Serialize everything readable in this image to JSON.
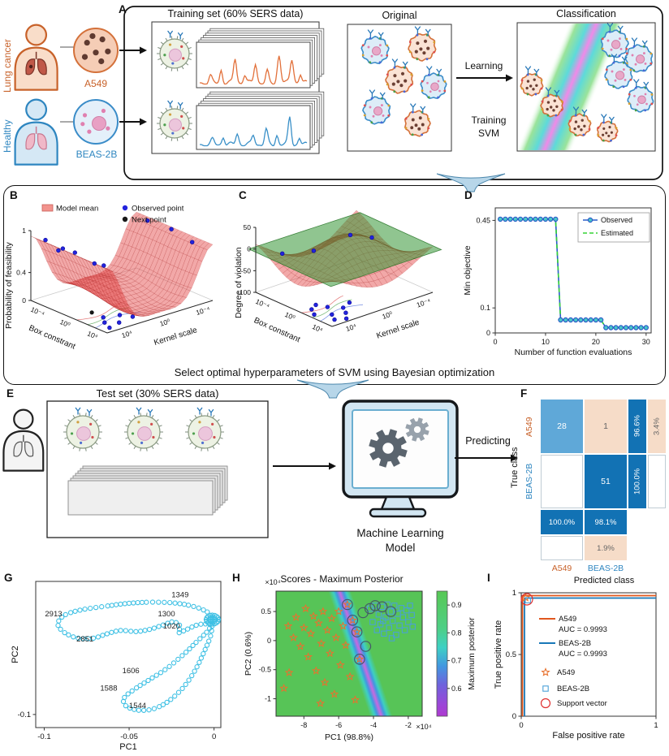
{
  "colors": {
    "accent_orange": "#c8622a",
    "accent_blue": "#2e86c0",
    "cyan": "#3ec0e4",
    "confusion_dark": "#1272b4",
    "confusion_mid": "#5fa8d8",
    "confusion_peach": "#f6dcc8",
    "green_bg": "#57c457"
  },
  "bcd_caption": "Select optimal hyperparameters of SVM using Bayesian optimization",
  "panels": {
    "A": {
      "label": "A",
      "lung_cancer": "Lung cancer",
      "healthy": "Healthy",
      "a549": "A549",
      "beas2b": "BEAS-2B",
      "training_title": "Training set (60% SERS data)",
      "original_title": "Original",
      "classification_title": "Classification",
      "learning": "Learning",
      "training_svm": "Training SVM"
    },
    "B": {
      "label": "B"
    },
    "C": {
      "label": "C"
    },
    "D": {
      "label": "D"
    },
    "E": {
      "label": "E",
      "title": "Test set (30% SERS data)",
      "model_label": "Machine Learning Model",
      "predicting": "Predicting"
    },
    "F": {
      "label": "F"
    },
    "G": {
      "label": "G"
    },
    "H": {
      "label": "H"
    },
    "I": {
      "label": "I"
    }
  },
  "chart_data": [
    {
      "id": "B",
      "type": "surface3d",
      "zlabel": "Probability of feasibility",
      "xlabel": "Box constrant",
      "ylabel": "Kernel scale",
      "zticks": [
        {
          "label": "1",
          "f": 1
        },
        {
          "label": "0.4",
          "f": 0.4
        },
        {
          "label": "0",
          "f": 0
        }
      ],
      "xticks": [
        "10⁻⁴",
        "10⁰",
        "10⁴"
      ],
      "yticks": [
        "10⁴",
        "10⁰",
        "10⁻⁴"
      ],
      "legend": [
        {
          "label": "Model mean",
          "type": "patch",
          "color": "#f2938d"
        },
        {
          "label": "Observed point",
          "type": "dot",
          "color": "#2323dd"
        },
        {
          "label": "Next point",
          "type": "dot",
          "color": "#181818"
        }
      ],
      "surface_rgb": "226,62,62",
      "dots_surface": [
        [
          0.15,
          0.03
        ],
        [
          0.35,
          0.05
        ],
        [
          0.55,
          0.02
        ],
        [
          0.75,
          0.06
        ],
        [
          0.9,
          0.04
        ],
        [
          0.25,
          0.08
        ],
        [
          0.2,
          0.96
        ],
        [
          0.5,
          0.97
        ],
        [
          0.8,
          0.95
        ]
      ],
      "dots_floor": [
        [
          0.8,
          0.12
        ],
        [
          0.88,
          0.2
        ],
        [
          0.75,
          0.3
        ],
        [
          0.92,
          0.08
        ],
        [
          0.7,
          0.18
        ],
        [
          0.85,
          0.35
        ]
      ],
      "next_point": [
        0.55,
        0.18
      ]
    },
    {
      "id": "C",
      "type": "surface3d",
      "zlabel": "Degree of violation",
      "xlabel": "Box constrant",
      "ylabel": "Kernel scale",
      "zticks": [
        {
          "label": "50",
          "f": 1
        },
        {
          "label": "0",
          "f": 0.667
        },
        {
          "label": "-50",
          "f": 0.333
        },
        {
          "label": "-100",
          "f": 0
        }
      ],
      "xticks": [
        "10⁻⁴",
        "10⁰",
        "10⁴"
      ],
      "yticks": [
        "10⁴",
        "10⁰",
        "10⁻⁴"
      ],
      "plane_f": 0.667,
      "surface_rgb": "226,62,62",
      "dots_floor": [
        [
          0.6,
          0.1
        ],
        [
          0.7,
          0.05
        ],
        [
          0.8,
          0.15
        ],
        [
          0.9,
          0.1
        ],
        [
          0.65,
          0.22
        ],
        [
          0.75,
          0.3
        ],
        [
          0.85,
          0.25
        ],
        [
          0.55,
          0.18
        ],
        [
          0.95,
          0.18
        ],
        [
          0.7,
          0.4
        ]
      ],
      "dots_surface": [
        [
          0.15,
          0.15
        ],
        [
          0.25,
          0.75
        ],
        [
          0.1,
          0.5
        ],
        [
          0.4,
          0.85
        ]
      ]
    },
    {
      "id": "D",
      "type": "line",
      "xlabel": "Number of function evaluations",
      "ylabel": "Min objective",
      "xlim": [
        0,
        31
      ],
      "ylim": [
        0,
        0.5
      ],
      "xticks": [
        0,
        10,
        20,
        30
      ],
      "yticks": [
        {
          "label": "0.45",
          "v": 0.45
        },
        {
          "label": "0.1",
          "v": 0.1
        },
        {
          "label": "0",
          "v": 0
        }
      ],
      "legend": [
        {
          "label": "Observed",
          "color": "#2b5bc8",
          "dash": false
        },
        {
          "label": "Estimated",
          "color": "#35d435",
          "dash": true
        }
      ],
      "marker_fill": "#49c8c8",
      "x": [
        1,
        2,
        3,
        4,
        5,
        6,
        7,
        8,
        9,
        10,
        11,
        12,
        13,
        14,
        15,
        16,
        17,
        18,
        19,
        20,
        21,
        22,
        23,
        24,
        25,
        26,
        27,
        28,
        29,
        30
      ],
      "y": [
        0.455,
        0.455,
        0.455,
        0.455,
        0.455,
        0.455,
        0.455,
        0.455,
        0.455,
        0.455,
        0.455,
        0.455,
        0.052,
        0.052,
        0.052,
        0.052,
        0.052,
        0.052,
        0.052,
        0.052,
        0.052,
        0.021,
        0.021,
        0.021,
        0.021,
        0.021,
        0.021,
        0.021,
        0.021,
        0.021
      ]
    },
    {
      "id": "F",
      "type": "heatmap",
      "ylabel": "True class",
      "xlabel": "Predicted class",
      "rows": [
        "A549",
        "BEAS-2B"
      ],
      "cols": [
        "A549",
        "BEAS-2B"
      ],
      "matrix": [
        [
          "28",
          "1"
        ],
        [
          "",
          "51"
        ]
      ],
      "row_summary": [
        [
          "96.6%",
          "3.4%"
        ],
        [
          "100.0%",
          ""
        ]
      ],
      "col_summary": [
        [
          "100.0%",
          "98.1%"
        ],
        [
          "",
          "1.9%"
        ]
      ],
      "cell_colors": {
        "c00": "#5fa8d8",
        "c01": "#f6dcc8",
        "c10": "#ffffff",
        "c11": "#1272b4",
        "dark": "#1272b4",
        "peach": "#f6dcc8",
        "white": "#ffffff"
      }
    },
    {
      "id": "G",
      "type": "scatter",
      "xlabel": "PC1",
      "ylabel": "PC2",
      "xlim": [
        -0.105,
        0.004
      ],
      "ylim": [
        -0.112,
        0.022
      ],
      "xticks": [
        {
          "label": "-0.1",
          "v": -0.1
        },
        {
          "label": "-0.05",
          "v": -0.05
        },
        {
          "label": "0",
          "v": 0
        }
      ],
      "yticks": [
        {
          "label": "-0.1",
          "v": -0.1
        }
      ],
      "marker_color": "#3ec0e4",
      "loop": [
        [
          -0.001,
          -0.013
        ],
        [
          -0.004,
          -0.006
        ],
        [
          -0.012,
          -0.001
        ],
        [
          -0.022,
          0.002
        ],
        [
          -0.035,
          0.003
        ],
        [
          -0.05,
          0.002
        ],
        [
          -0.065,
          -0.001
        ],
        [
          -0.078,
          -0.004
        ],
        [
          -0.088,
          -0.009
        ],
        [
          -0.092,
          -0.017
        ],
        [
          -0.088,
          -0.025
        ],
        [
          -0.08,
          -0.03
        ],
        [
          -0.071,
          -0.03
        ],
        [
          -0.063,
          -0.026
        ],
        [
          -0.055,
          -0.023
        ],
        [
          -0.046,
          -0.024
        ],
        [
          -0.038,
          -0.022
        ],
        [
          -0.03,
          -0.018
        ],
        [
          -0.024,
          -0.015
        ],
        [
          -0.02,
          -0.019
        ],
        [
          -0.021,
          -0.025
        ],
        [
          -0.016,
          -0.022
        ],
        [
          -0.01,
          -0.018
        ],
        [
          -0.005,
          -0.017
        ],
        [
          -0.002,
          -0.018
        ],
        [
          -0.004,
          -0.024
        ],
        [
          -0.01,
          -0.033
        ],
        [
          -0.018,
          -0.045
        ],
        [
          -0.028,
          -0.058
        ],
        [
          -0.038,
          -0.068
        ],
        [
          -0.047,
          -0.077
        ],
        [
          -0.053,
          -0.085
        ],
        [
          -0.052,
          -0.092
        ],
        [
          -0.045,
          -0.096
        ],
        [
          -0.036,
          -0.095
        ],
        [
          -0.027,
          -0.088
        ],
        [
          -0.018,
          -0.075
        ],
        [
          -0.011,
          -0.059
        ],
        [
          -0.006,
          -0.043
        ],
        [
          -0.002,
          -0.028
        ],
        [
          -0.001,
          -0.016
        ]
      ],
      "annotations": [
        {
          "text": "2913",
          "x": -0.0945,
          "y": -0.01
        },
        {
          "text": "1349",
          "x": -0.02,
          "y": 0.0075
        },
        {
          "text": "1300",
          "x": -0.028,
          "y": -0.01
        },
        {
          "text": "1020",
          "x": -0.025,
          "y": -0.021
        },
        {
          "text": "2851",
          "x": -0.076,
          "y": -0.033
        },
        {
          "text": "1606",
          "x": -0.049,
          "y": -0.062
        },
        {
          "text": "1588",
          "x": -0.062,
          "y": -0.078
        },
        {
          "text": "1544",
          "x": -0.045,
          "y": -0.094
        }
      ]
    },
    {
      "id": "H",
      "type": "scatter",
      "title": "Scores - Maximum Posterior",
      "xlabel": "PC1 (98.8%)",
      "ylabel": "PC2 (0.6%)",
      "x_exp": "×10⁴",
      "y_exp": "×10⁴",
      "xlim": [
        -9.6,
        -1.2
      ],
      "ylim": [
        -1.3,
        0.85
      ],
      "xticks": [
        -8,
        -6,
        -4,
        -2
      ],
      "yticks": [
        {
          "label": "0.5",
          "v": 0.5
        },
        {
          "label": "0",
          "v": 0
        },
        {
          "label": "-0.5",
          "v": -0.5
        },
        {
          "label": "-1",
          "v": -1
        }
      ],
      "band": {
        "x_top": -5.95,
        "x_bottom": -3.55
      },
      "colorbar": {
        "label": "Maximum posterior",
        "range": [
          0.5,
          0.95
        ],
        "ticks": [
          0.9,
          0.8,
          0.7,
          0.6
        ]
      },
      "series": [
        {
          "name": "A549",
          "marker": "star",
          "color": "#e8722e"
        },
        {
          "name": "BEAS-2B",
          "marker": "square",
          "color": "#4aa0d8"
        }
      ],
      "stars": [
        [
          -8.9,
          0.25
        ],
        [
          -8.6,
          0.05
        ],
        [
          -8.45,
          0.4
        ],
        [
          -8.2,
          -0.1
        ],
        [
          -8.0,
          0.22
        ],
        [
          -7.9,
          0.55
        ],
        [
          -7.75,
          -0.28
        ],
        [
          -7.6,
          0.12
        ],
        [
          -7.45,
          0.42
        ],
        [
          -7.3,
          -0.52
        ],
        [
          -7.15,
          0.3
        ],
        [
          -7.0,
          -0.05
        ],
        [
          -6.9,
          0.5
        ],
        [
          -6.8,
          -0.72
        ],
        [
          -6.65,
          0.18
        ],
        [
          -6.5,
          -0.22
        ],
        [
          -6.4,
          0.38
        ],
        [
          -6.25,
          -0.92
        ],
        [
          -6.15,
          0.05
        ],
        [
          -6.0,
          0.5
        ],
        [
          -5.9,
          -0.42
        ],
        [
          -5.75,
          0.25
        ],
        [
          -5.6,
          -0.08
        ],
        [
          -5.5,
          0.62
        ],
        [
          -5.35,
          -0.62
        ],
        [
          -5.2,
          0.35
        ],
        [
          -5.05,
          -1.02
        ],
        [
          -4.95,
          0.15
        ],
        [
          -4.8,
          -0.32
        ],
        [
          -8.85,
          -0.55
        ],
        [
          -9.15,
          -0.82
        ],
        [
          -7.05,
          -1.08
        ]
      ],
      "squares": [
        [
          -4.2,
          0.55
        ],
        [
          -4.05,
          0.32
        ],
        [
          -3.9,
          0.6
        ],
        [
          -3.8,
          0.18
        ],
        [
          -3.7,
          0.45
        ],
        [
          -3.6,
          0.28
        ],
        [
          -3.5,
          0.58
        ],
        [
          -3.4,
          0.12
        ],
        [
          -3.3,
          0.4
        ],
        [
          -3.2,
          0.62
        ],
        [
          -3.1,
          0.22
        ],
        [
          -3.0,
          0.5
        ],
        [
          -2.9,
          0.34
        ],
        [
          -2.8,
          0.6
        ],
        [
          -2.7,
          0.1
        ],
        [
          -2.6,
          0.46
        ],
        [
          -2.5,
          0.26
        ],
        [
          -2.4,
          0.56
        ],
        [
          -2.3,
          0.4
        ],
        [
          -2.2,
          0.18
        ],
        [
          -2.1,
          0.52
        ],
        [
          -2.0,
          0.32
        ],
        [
          -1.9,
          0.6
        ],
        [
          -1.8,
          0.44
        ],
        [
          -1.75,
          0.24
        ],
        [
          -2.95,
          0.04
        ],
        [
          -3.45,
          0.34
        ]
      ],
      "support": [
        [
          -5.5,
          0.62
        ],
        [
          -5.2,
          0.35
        ],
        [
          -4.95,
          0.15
        ],
        [
          -4.8,
          -0.32
        ],
        [
          -4.6,
          0.48
        ],
        [
          -4.45,
          -0.1
        ],
        [
          -4.2,
          0.55
        ],
        [
          -3.9,
          0.6
        ],
        [
          -3.5,
          0.58
        ],
        [
          -3.0,
          0.5
        ]
      ]
    },
    {
      "id": "I",
      "type": "line",
      "xlabel": "False positive rate",
      "ylabel": "True positive rate",
      "xticks": [
        {
          "label": "0",
          "v": 0
        },
        {
          "label": "1",
          "v": 1
        }
      ],
      "yticks": [
        {
          "label": "0",
          "v": 0
        },
        {
          "label": "0.5",
          "v": 0.5
        },
        {
          "label": "1",
          "v": 1
        }
      ],
      "series": [
        {
          "name": "A549",
          "auc": "AUC = 0.9993",
          "color": "#e0571e",
          "points": [
            [
              0,
              0
            ],
            [
              0,
              1
            ],
            [
              1,
              1
            ]
          ]
        },
        {
          "name": "BEAS-2B",
          "auc": "AUC = 0.9993",
          "color": "#1878b8",
          "points": [
            [
              0,
              0
            ],
            [
              0,
              1
            ],
            [
              1,
              1
            ]
          ]
        }
      ],
      "marker_legend": [
        {
          "label": "A549",
          "marker": "star",
          "color": "#e8722e"
        },
        {
          "label": "BEAS-2B",
          "marker": "square",
          "color": "#4aa0d8"
        },
        {
          "label": "Support vector",
          "marker": "circle",
          "color": "#e03030"
        }
      ]
    }
  ]
}
